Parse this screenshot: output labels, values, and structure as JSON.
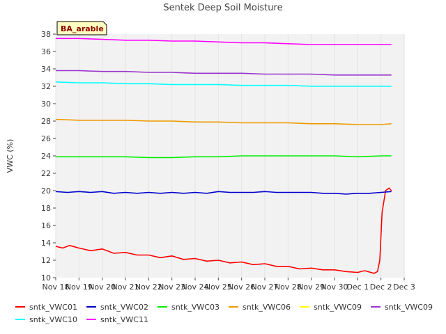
{
  "chart_data": {
    "type": "line",
    "title": "Sentek Deep Soil Moisture",
    "xlabel": "",
    "ylabel": "VWC (%)",
    "ylim": [
      10,
      38
    ],
    "yticks": [
      10,
      12,
      14,
      16,
      18,
      20,
      22,
      24,
      26,
      28,
      30,
      32,
      34,
      36,
      38
    ],
    "xlim": [
      18,
      33
    ],
    "xticks": [
      {
        "value": 18,
        "label": "Nov 18"
      },
      {
        "value": 19,
        "label": "Nov 19"
      },
      {
        "value": 20,
        "label": "Nov 20"
      },
      {
        "value": 21,
        "label": "Nov 21"
      },
      {
        "value": 22,
        "label": "Nov 22"
      },
      {
        "value": 23,
        "label": "Nov 23"
      },
      {
        "value": 24,
        "label": "Nov 24"
      },
      {
        "value": 25,
        "label": "Nov 25"
      },
      {
        "value": 26,
        "label": "Nov 26"
      },
      {
        "value": 27,
        "label": "Nov 27"
      },
      {
        "value": 28,
        "label": "Nov 28"
      },
      {
        "value": 29,
        "label": "Nov 29"
      },
      {
        "value": 30,
        "label": "Nov 30"
      },
      {
        "value": 31,
        "label": "Dec 1"
      },
      {
        "value": 32,
        "label": "Dec 2"
      },
      {
        "value": 33,
        "label": "Dec 3"
      }
    ],
    "annotation": "BA_arable",
    "grid": true,
    "legend_placement": "bottom",
    "series": [
      {
        "name": "sntk_VWC01",
        "color": "#ff0000",
        "x": [
          18.0,
          18.3,
          18.6,
          19.0,
          19.5,
          20.0,
          20.5,
          21.0,
          21.5,
          22.0,
          22.5,
          23.0,
          23.5,
          24.0,
          24.5,
          25.0,
          25.5,
          26.0,
          26.5,
          27.0,
          27.5,
          28.0,
          28.5,
          29.0,
          29.5,
          30.0,
          30.5,
          31.0,
          31.3,
          31.7,
          31.85,
          31.95,
          32.05,
          32.2,
          32.35,
          32.45
        ],
        "y": [
          13.6,
          13.4,
          13.7,
          13.4,
          13.1,
          13.3,
          12.8,
          12.9,
          12.6,
          12.6,
          12.3,
          12.5,
          12.1,
          12.2,
          11.9,
          12.0,
          11.7,
          11.8,
          11.5,
          11.6,
          11.3,
          11.3,
          11.0,
          11.1,
          10.9,
          10.9,
          10.7,
          10.6,
          10.8,
          10.5,
          10.7,
          12.0,
          17.5,
          20.0,
          20.3,
          20.0
        ]
      },
      {
        "name": "sntk_VWC02",
        "color": "#0000cc",
        "x": [
          18.0,
          18.5,
          19.0,
          19.5,
          20.0,
          20.5,
          21.0,
          21.5,
          22.0,
          22.5,
          23.0,
          23.5,
          24.0,
          24.5,
          25.0,
          25.5,
          26.0,
          26.5,
          27.0,
          27.5,
          28.0,
          28.5,
          29.0,
          29.5,
          30.0,
          30.5,
          31.0,
          31.5,
          32.0,
          32.45
        ],
        "y": [
          19.9,
          19.8,
          19.9,
          19.8,
          19.9,
          19.7,
          19.8,
          19.7,
          19.8,
          19.7,
          19.8,
          19.7,
          19.8,
          19.7,
          19.9,
          19.8,
          19.8,
          19.8,
          19.9,
          19.8,
          19.8,
          19.8,
          19.8,
          19.7,
          19.7,
          19.6,
          19.7,
          19.7,
          19.8,
          19.9
        ]
      },
      {
        "name": "sntk_VWC03",
        "color": "#00ee00",
        "x": [
          18.0,
          19.0,
          20.0,
          21.0,
          22.0,
          23.0,
          24.0,
          25.0,
          26.0,
          27.0,
          28.0,
          29.0,
          30.0,
          31.0,
          32.0,
          32.45
        ],
        "y": [
          23.9,
          23.9,
          23.9,
          23.9,
          23.8,
          23.8,
          23.9,
          23.9,
          24.0,
          24.0,
          24.0,
          24.0,
          24.0,
          23.9,
          24.0,
          24.0
        ]
      },
      {
        "name": "sntk_VWC06",
        "color": "#ee9900",
        "x": [
          18.0,
          19.0,
          20.0,
          21.0,
          22.0,
          23.0,
          24.0,
          25.0,
          26.0,
          27.0,
          28.0,
          29.0,
          30.0,
          31.0,
          32.0,
          32.45
        ],
        "y": [
          28.2,
          28.1,
          28.1,
          28.1,
          28.0,
          28.0,
          27.9,
          27.9,
          27.8,
          27.8,
          27.8,
          27.7,
          27.7,
          27.6,
          27.6,
          27.7
        ]
      },
      {
        "name": "sntk_VWC09",
        "color": "#ffff00",
        "x": [],
        "y": []
      },
      {
        "name": "sntk_VWC09",
        "color": "#9933cc",
        "x": [
          18.0,
          19.0,
          20.0,
          21.0,
          22.0,
          23.0,
          24.0,
          25.0,
          26.0,
          27.0,
          28.0,
          29.0,
          30.0,
          31.0,
          32.0,
          32.45
        ],
        "y": [
          33.8,
          33.8,
          33.7,
          33.7,
          33.6,
          33.6,
          33.5,
          33.5,
          33.5,
          33.4,
          33.4,
          33.4,
          33.3,
          33.3,
          33.3,
          33.3
        ]
      },
      {
        "name": "sntk_VWC10",
        "color": "#00ffff",
        "x": [
          18.0,
          19.0,
          20.0,
          21.0,
          22.0,
          23.0,
          24.0,
          25.0,
          26.0,
          27.0,
          28.0,
          29.0,
          30.0,
          31.0,
          32.0,
          32.45
        ],
        "y": [
          32.5,
          32.4,
          32.4,
          32.3,
          32.3,
          32.2,
          32.2,
          32.2,
          32.1,
          32.1,
          32.1,
          32.0,
          32.0,
          32.0,
          32.0,
          32.0
        ]
      },
      {
        "name": "sntk_VWC11",
        "color": "#ff00ff",
        "x": [
          18.0,
          19.0,
          20.0,
          21.0,
          22.0,
          23.0,
          24.0,
          25.0,
          26.0,
          27.0,
          28.0,
          29.0,
          30.0,
          31.0,
          32.0,
          32.45
        ],
        "y": [
          37.5,
          37.5,
          37.4,
          37.3,
          37.3,
          37.2,
          37.2,
          37.1,
          37.0,
          37.0,
          36.9,
          36.8,
          36.8,
          36.8,
          36.8,
          36.8
        ]
      }
    ]
  }
}
